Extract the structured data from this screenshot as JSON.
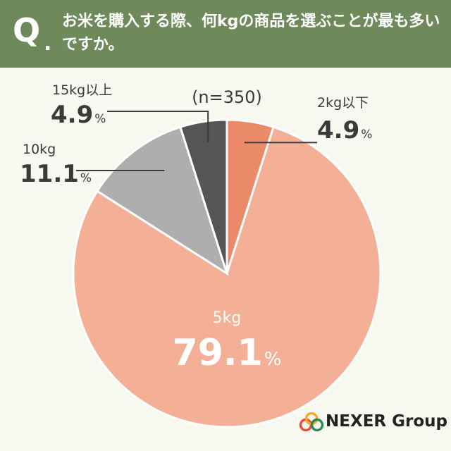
{
  "header": {
    "q_letter": "Q",
    "q_dot": ".",
    "question": "お米を購入する際、何kgの商品を選ぶことが最も多いですか。"
  },
  "chart_data": {
    "type": "pie",
    "sample_size": "(n=350)",
    "percent_symbol": "%",
    "slices": [
      {
        "label": "2kg以下",
        "value": 4.9,
        "value_text": "4.9",
        "color": "#ea8a68"
      },
      {
        "label": "5kg",
        "value": 79.1,
        "value_text": "79.1",
        "color": "#f3b096"
      },
      {
        "label": "10kg",
        "value": 11.1,
        "value_text": "11.1",
        "color": "#aeaeae"
      },
      {
        "label": "15kg以上",
        "value": 4.9,
        "value_text": "4.9",
        "color": "#555555"
      }
    ]
  },
  "brand": {
    "name": "NEXER Group",
    "icon": "nexer-rings-logo",
    "icon_colors": [
      "#e94e3c",
      "#f5a623",
      "#2e8b57"
    ]
  }
}
